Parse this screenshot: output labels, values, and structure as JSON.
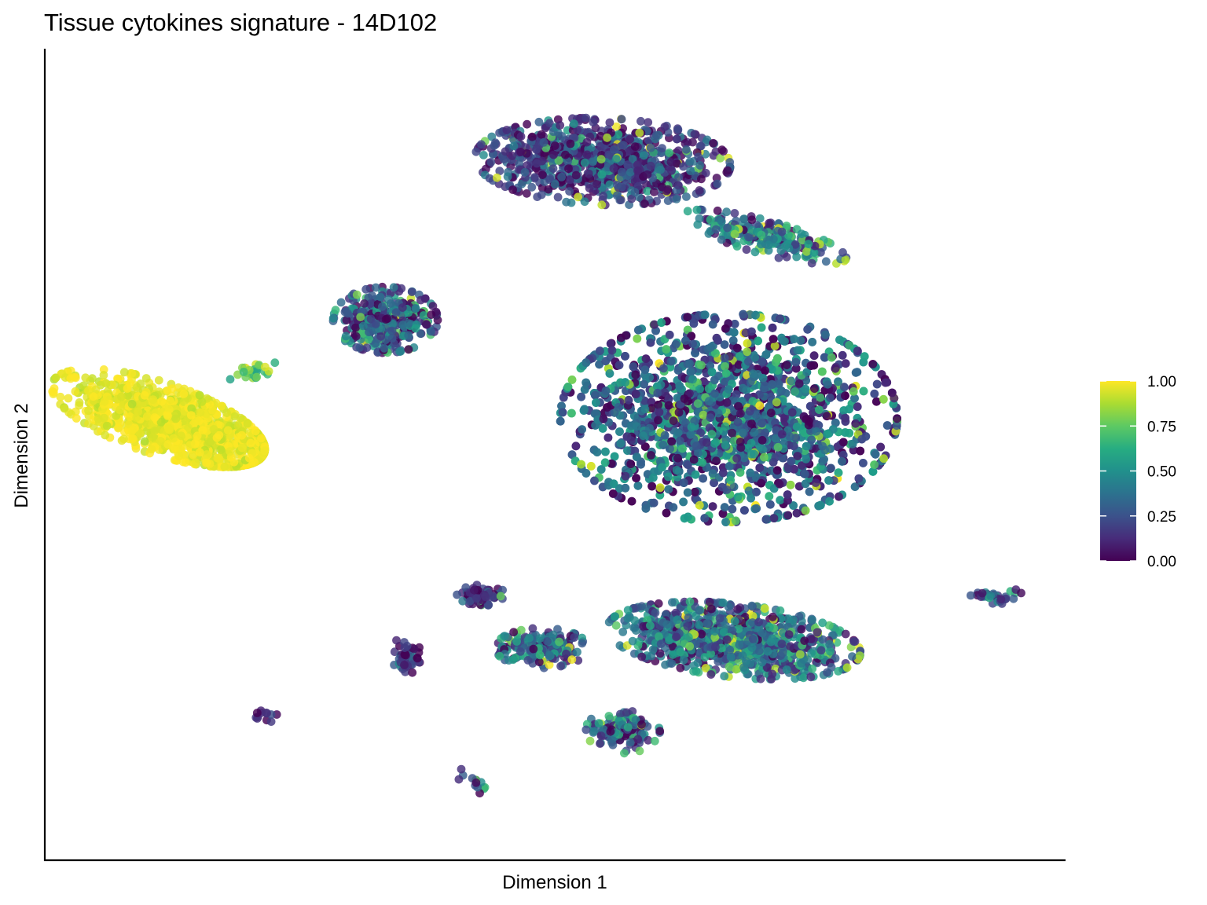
{
  "chart_data": {
    "type": "scatter",
    "title": "Tissue cytokines signature - 14D102",
    "xlabel": "Dimension 1",
    "ylabel": "Dimension 2",
    "xlim": [
      0,
      100
    ],
    "ylim": [
      0,
      100
    ],
    "grid": false,
    "legend": {
      "placement": "right",
      "type": "colorbar",
      "palette": "viridis",
      "range": [
        0,
        1
      ],
      "ticks": [
        "0.00",
        "0.25",
        "0.50",
        "0.75",
        "1.00"
      ],
      "colors": [
        "#440154",
        "#3b528b",
        "#21908c",
        "#5dc963",
        "#fde725"
      ]
    },
    "point_color_scale": "score 0.00–1.00",
    "clusters": [
      {
        "cx": 11,
        "cy": 55,
        "rx": 10,
        "ry": 4,
        "n": 1300,
        "tilt": -0.45,
        "mean": 0.97,
        "sd": 0.04,
        "skew": "tail-right"
      },
      {
        "cx": 20.5,
        "cy": 61,
        "rx": 2.2,
        "ry": 1.2,
        "n": 25,
        "tilt": 0.4,
        "mean": 0.72,
        "sd": 0.15
      },
      {
        "cx": 33.5,
        "cy": 68,
        "rx": 4.5,
        "ry": 3.8,
        "n": 420,
        "tilt": 0,
        "mean": 0.28,
        "sd": 0.22
      },
      {
        "cx": 55,
        "cy": 89,
        "rx": 11,
        "ry": 5,
        "n": 900,
        "tilt": -0.05,
        "mean": 0.18,
        "sd": 0.17
      },
      {
        "cx": 71,
        "cy": 79,
        "rx": 7.5,
        "ry": 1.9,
        "n": 220,
        "tilt": -0.35,
        "mean": 0.38,
        "sd": 0.22
      },
      {
        "cx": 67.5,
        "cy": 55,
        "rx": 14.5,
        "ry": 12,
        "n": 3200,
        "tilt": 0,
        "mean": 0.3,
        "sd": 0.22
      },
      {
        "cx": 43,
        "cy": 31.5,
        "rx": 2.1,
        "ry": 1.2,
        "n": 70,
        "tilt": 0,
        "mean": 0.12,
        "sd": 0.15
      },
      {
        "cx": 35.5,
        "cy": 23.5,
        "rx": 1.3,
        "ry": 2.2,
        "n": 50,
        "tilt": 0,
        "mean": 0.15,
        "sd": 0.18
      },
      {
        "cx": 49,
        "cy": 24.5,
        "rx": 4,
        "ry": 2.3,
        "n": 200,
        "tilt": 0,
        "mean": 0.35,
        "sd": 0.2
      },
      {
        "cx": 68,
        "cy": 25.5,
        "rx": 11,
        "ry": 4.2,
        "n": 950,
        "tilt": -0.15,
        "mean": 0.35,
        "sd": 0.22
      },
      {
        "cx": 57,
        "cy": 13.5,
        "rx": 3.2,
        "ry": 2.6,
        "n": 130,
        "tilt": 0,
        "mean": 0.3,
        "sd": 0.2
      },
      {
        "cx": 21.5,
        "cy": 15.5,
        "rx": 1.1,
        "ry": 0.8,
        "n": 12,
        "tilt": 0,
        "mean": 0.1,
        "sd": 0.08
      },
      {
        "cx": 42.5,
        "cy": 6.5,
        "rx": 1,
        "ry": 2.2,
        "n": 14,
        "tilt": 0.8,
        "mean": 0.25,
        "sd": 0.2
      },
      {
        "cx": 94,
        "cy": 31.5,
        "rx": 2.2,
        "ry": 1,
        "n": 30,
        "tilt": 0,
        "mean": 0.25,
        "sd": 0.2
      }
    ],
    "point_count_note": "approximate; values estimated from colour encoding"
  }
}
